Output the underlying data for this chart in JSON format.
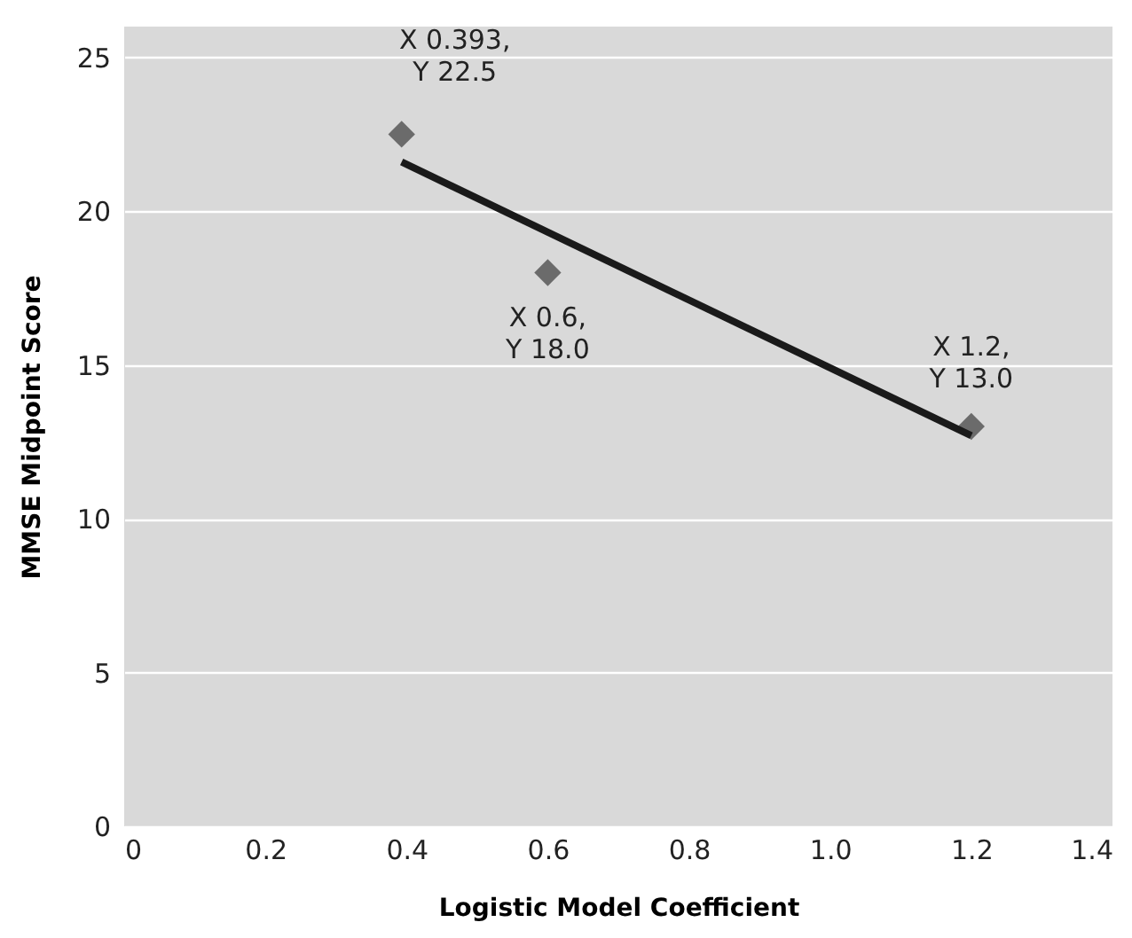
{
  "chart_data": {
    "type": "scatter",
    "xlabel": "Logistic Model Coefficient",
    "ylabel": "MMSE Midpoint Score",
    "series": [
      {
        "color": "#6b6b6b",
        "marker": "diamond",
        "x": [
          0.393,
          0.6,
          1.2
        ],
        "values": [
          22.5,
          18.0,
          13.0
        ]
      },
      {
        "type": "line",
        "color": "#1a1a1a",
        "marker": "none",
        "line_style": "solid",
        "x": [
          0.393,
          1.2
        ],
        "values": [
          21.6,
          12.7
        ]
      }
    ],
    "annotations": [
      {
        "text": "X 0.393,\nY 22.5",
        "x": 0.393,
        "y": 22.5
      },
      {
        "text": "X 0.6,\nY 18.0",
        "x": 0.6,
        "y": 18.0
      },
      {
        "text": "X 1.2,\nY 13.0",
        "x": 1.2,
        "y": 13.0
      }
    ],
    "xlim": [
      0,
      1.4
    ],
    "xticks": [
      0,
      0.2,
      0.4,
      0.6,
      0.8,
      {
        "value": 1.0,
        "label": "1.0"
      },
      1.2,
      1.4
    ],
    "ylim": [
      0,
      26
    ],
    "yticks": [
      0,
      5,
      10,
      15,
      20,
      25
    ],
    "grid": "y"
  }
}
